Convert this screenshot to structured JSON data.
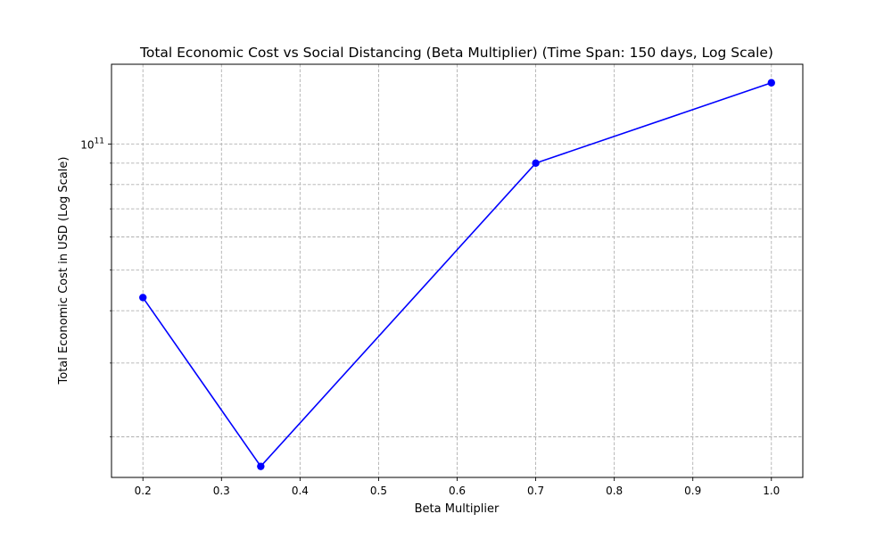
{
  "chart_data": {
    "type": "line",
    "title": "Total Economic Cost vs Social Distancing (Beta Multiplier) (Time Span: 150 days, Log Scale)",
    "xlabel": "Beta Multiplier",
    "ylabel": "Total Economic Cost in USD (Log Scale)",
    "x_ticks": [
      "0.2",
      "0.3",
      "0.4",
      "0.5",
      "0.6",
      "0.7",
      "0.8",
      "0.9",
      "1.0"
    ],
    "x_tick_values": [
      0.2,
      0.3,
      0.4,
      0.5,
      0.6,
      0.7,
      0.8,
      0.9,
      1.0
    ],
    "xlim": [
      0.16,
      1.04
    ],
    "y_scale": "log",
    "ylim": [
      16000000000.0,
      155000000000.0
    ],
    "y_major_tick_value": 100000000000.0,
    "y_major_tick_base": "10",
    "y_major_tick_exponent": "11",
    "y_minor_tick_values": [
      20000000000.0,
      30000000000.0,
      40000000000.0,
      50000000000.0,
      60000000000.0,
      70000000000.0,
      80000000000.0,
      90000000000.0
    ],
    "grid": true,
    "series": [
      {
        "x": [
          0.2,
          0.35,
          0.7,
          1.0
        ],
        "y": [
          43000000000.0,
          17000000000.0,
          90000000000.0,
          140000000000.0
        ],
        "color": "#0000ff",
        "marker": "circle"
      }
    ]
  }
}
